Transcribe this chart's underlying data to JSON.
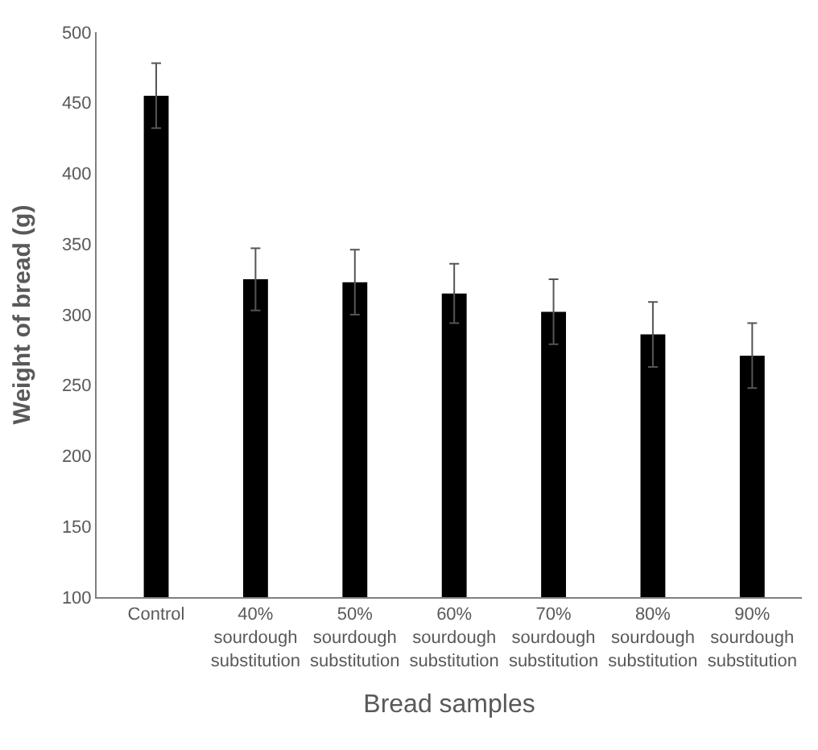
{
  "chart_data": {
    "type": "bar",
    "xlabel": "Bread samples",
    "ylabel": "Weight of bread (g)",
    "categories": [
      "Control",
      "40% sourdough substitution",
      "50% sourdough substitution",
      "60% sourdough substitution",
      "70% sourdough substitution",
      "80% sourdough substitution",
      "90% sourdough substitution"
    ],
    "values": [
      455,
      325,
      323,
      315,
      302,
      286,
      271
    ],
    "errors": [
      23,
      22,
      23,
      21,
      23,
      23,
      23
    ],
    "color": "#000000",
    "ylim": [
      100,
      500
    ],
    "yticks": [
      100,
      150,
      200,
      250,
      300,
      350,
      400,
      450,
      500
    ]
  }
}
